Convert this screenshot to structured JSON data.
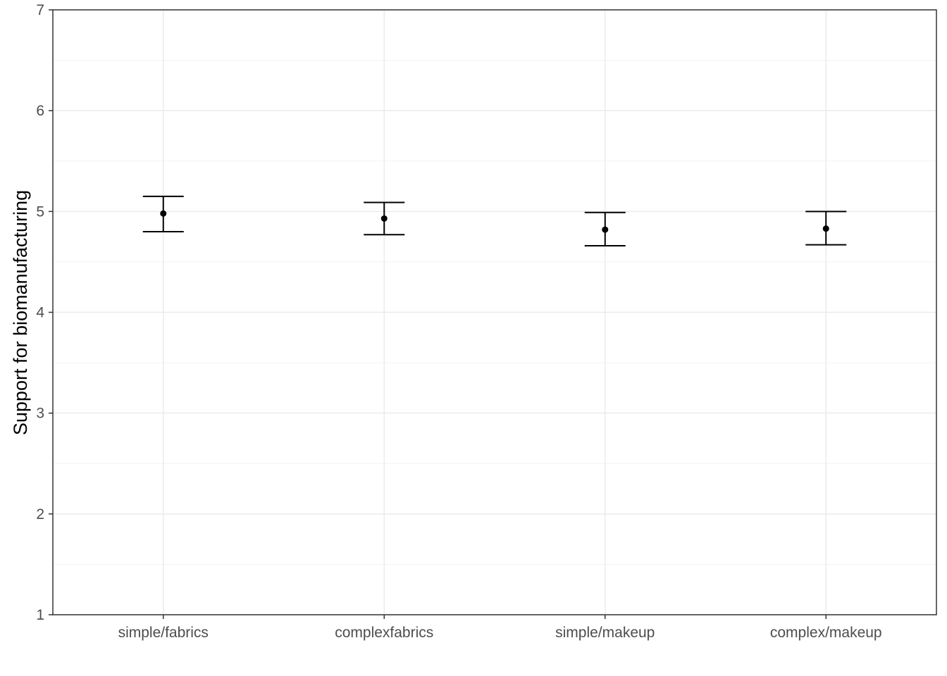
{
  "chart_data": {
    "type": "scatter",
    "title": "",
    "xlabel": "",
    "ylabel": "Support for biomanufacturing",
    "categories": [
      "simple/fabrics",
      "complexfabrics",
      "simple/makeup",
      "complex/makeup"
    ],
    "series": [
      {
        "values": [
          4.98,
          4.93,
          4.82,
          4.83
        ],
        "error_low": [
          4.8,
          4.77,
          4.66,
          4.67
        ],
        "error_high": [
          5.15,
          5.09,
          4.99,
          5.0
        ]
      }
    ],
    "ylim": [
      1,
      7
    ],
    "y_ticks": [
      1,
      2,
      3,
      4,
      5,
      6,
      7
    ],
    "grid": true,
    "legend": "none",
    "colors": {
      "marks": "#000000",
      "grid_major": "#ebebeb",
      "grid_minor": "#f2f2f2",
      "panel_border": "#333333",
      "tick_text": "#4d4d4d"
    }
  }
}
